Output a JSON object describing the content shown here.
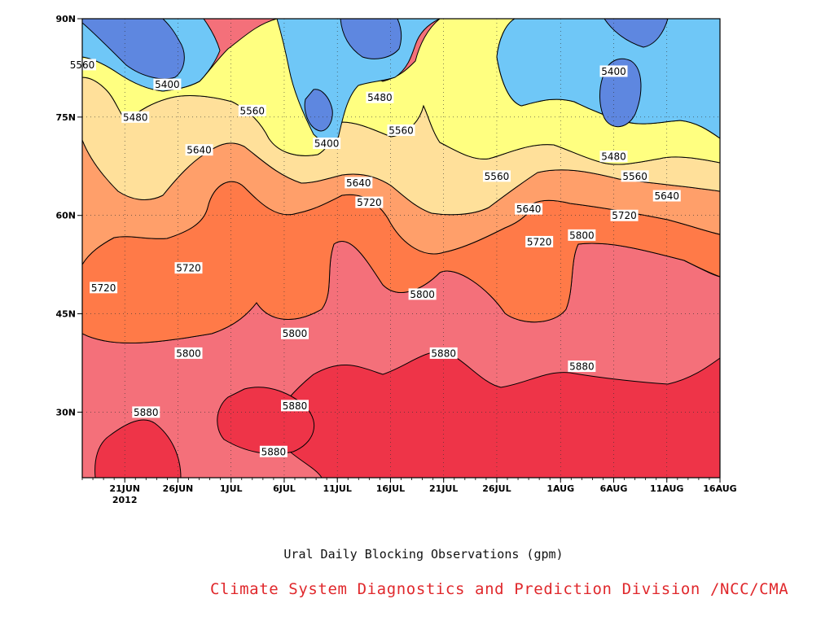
{
  "chart_data": {
    "type": "contour",
    "title": "Ural Daily Blocking Observations (gpm)",
    "x": {
      "tick_labels": [
        "21JUN",
        "26JUN",
        "1JUL",
        "6JUL",
        "11JUL",
        "16JUL",
        "21JUL",
        "26JUL",
        "1AUG",
        "6AUG",
        "11AUG",
        "16AUG"
      ],
      "year_label": "2012",
      "range": [
        "2012-06-17",
        "2012-08-16"
      ]
    },
    "y": {
      "tick_labels": [
        "30N",
        "45N",
        "60N",
        "75N",
        "90N"
      ],
      "ticks": [
        30,
        45,
        60,
        75,
        90
      ],
      "range": [
        20,
        90
      ]
    },
    "contour_levels": [
      5400,
      5480,
      5560,
      5640,
      5720,
      5800,
      5880
    ],
    "fill_colors": {
      "below_5400": "#5e87e0",
      "5400_5480": "#6fc7f7",
      "5480_5560": "#ffff80",
      "5560_5640": "#ffe09a",
      "5640_5720": "#ff9f6a",
      "5720_5800": "#ff7a48",
      "5800_5880": "#f4707a",
      "above_5880": "#ee3448"
    },
    "contour_labels": [
      {
        "text": "5560",
        "x": "2012-06-17",
        "y": 83
      },
      {
        "text": "5400",
        "x": "2012-06-25",
        "y": 80
      },
      {
        "text": "5480",
        "x": "2012-06-22",
        "y": 75
      },
      {
        "text": "5560",
        "x": "2012-07-03",
        "y": 76
      },
      {
        "text": "5400",
        "x": "2012-07-10",
        "y": 71
      },
      {
        "text": "5480",
        "x": "2012-07-15",
        "y": 78
      },
      {
        "text": "5560",
        "x": "2012-07-17",
        "y": 73
      },
      {
        "text": "5640",
        "x": "2012-06-28",
        "y": 70
      },
      {
        "text": "5640",
        "x": "2012-07-13",
        "y": 65
      },
      {
        "text": "5720",
        "x": "2012-07-14",
        "y": 62
      },
      {
        "text": "5560",
        "x": "2012-07-26",
        "y": 66
      },
      {
        "text": "5640",
        "x": "2012-07-29",
        "y": 61
      },
      {
        "text": "5720",
        "x": "2012-07-30",
        "y": 56
      },
      {
        "text": "5800",
        "x": "2012-08-03",
        "y": 57
      },
      {
        "text": "5720",
        "x": "2012-08-07",
        "y": 60
      },
      {
        "text": "5640",
        "x": "2012-08-11",
        "y": 63
      },
      {
        "text": "5560",
        "x": "2012-08-08",
        "y": 66
      },
      {
        "text": "5480",
        "x": "2012-08-06",
        "y": 69
      },
      {
        "text": "5400",
        "x": "2012-08-06",
        "y": 82
      },
      {
        "text": "5720",
        "x": "2012-06-19",
        "y": 49
      },
      {
        "text": "5720",
        "x": "2012-06-27",
        "y": 52
      },
      {
        "text": "5800",
        "x": "2012-07-19",
        "y": 48
      },
      {
        "text": "5800",
        "x": "2012-07-07",
        "y": 42
      },
      {
        "text": "5800",
        "x": "2012-06-27",
        "y": 39
      },
      {
        "text": "5880",
        "x": "2012-07-21",
        "y": 39
      },
      {
        "text": "5880",
        "x": "2012-08-03",
        "y": 37
      },
      {
        "text": "5880",
        "x": "2012-06-23",
        "y": 30
      },
      {
        "text": "5880",
        "x": "2012-07-07",
        "y": 31
      },
      {
        "text": "5880",
        "x": "2012-07-05",
        "y": 24
      }
    ]
  },
  "footer": {
    "title": "Ural Daily Blocking Observations (gpm)",
    "credit": "Climate System Diagnostics and Prediction Division /NCC/CMA"
  }
}
